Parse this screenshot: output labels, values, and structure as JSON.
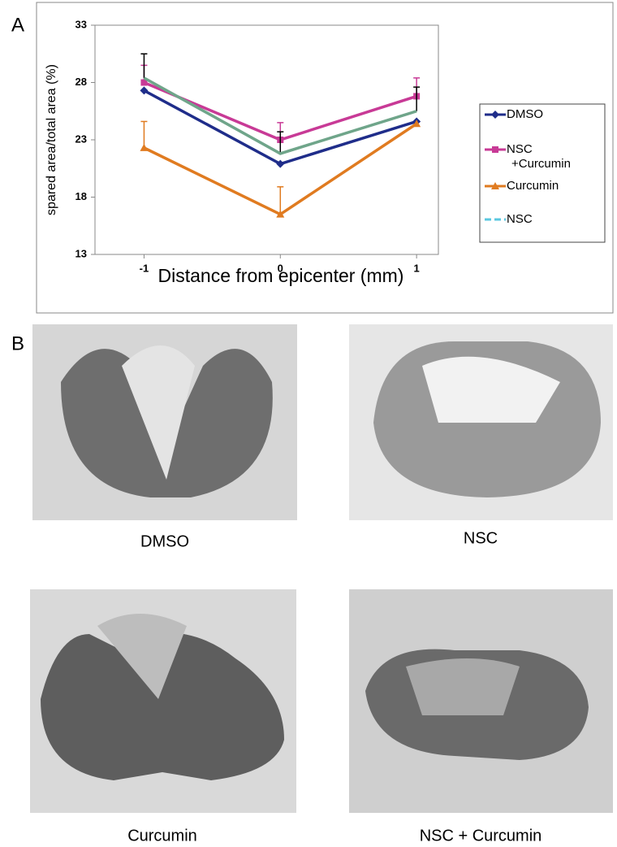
{
  "panels": {
    "a": "A",
    "b": "B"
  },
  "chart_data": {
    "type": "line",
    "x_label": "Distance from epicenter (mm)",
    "y_label": "spared area/total area (%)",
    "x": [
      -1,
      0,
      1
    ],
    "xlim": [
      -1.36,
      1.16
    ],
    "xticks": [
      -1,
      0,
      1
    ],
    "ylim": [
      13,
      33
    ],
    "yticks": [
      13,
      18,
      23,
      28,
      33
    ],
    "series": [
      {
        "name": "DMSO",
        "color": "#1f2d8a",
        "marker": "diamond",
        "values": [
          27.3,
          20.9,
          24.6
        ]
      },
      {
        "name": "NSC +Curcumin",
        "color": "#c83a96",
        "marker": "square",
        "values": [
          28.0,
          23.0,
          26.8
        ],
        "errors": [
          1.5,
          1.5,
          1.6
        ]
      },
      {
        "name": "Curcumin",
        "color": "#e07b20",
        "marker": "triangle",
        "values": [
          22.3,
          16.5,
          24.4
        ],
        "errors": [
          2.3,
          2.4,
          null
        ]
      },
      {
        "name": "NSC",
        "color": "#6fa58a",
        "legend_color": "#5bc8e0",
        "legend_dash": true,
        "error_color": "#000000",
        "values": [
          28.4,
          21.8,
          25.5
        ],
        "errors": [
          2.1,
          1.9,
          2.1
        ]
      }
    ]
  },
  "images": [
    {
      "caption": "DMSO"
    },
    {
      "caption": "NSC"
    },
    {
      "caption": "Curcumin"
    },
    {
      "caption": "NSC + Curcumin"
    }
  ]
}
